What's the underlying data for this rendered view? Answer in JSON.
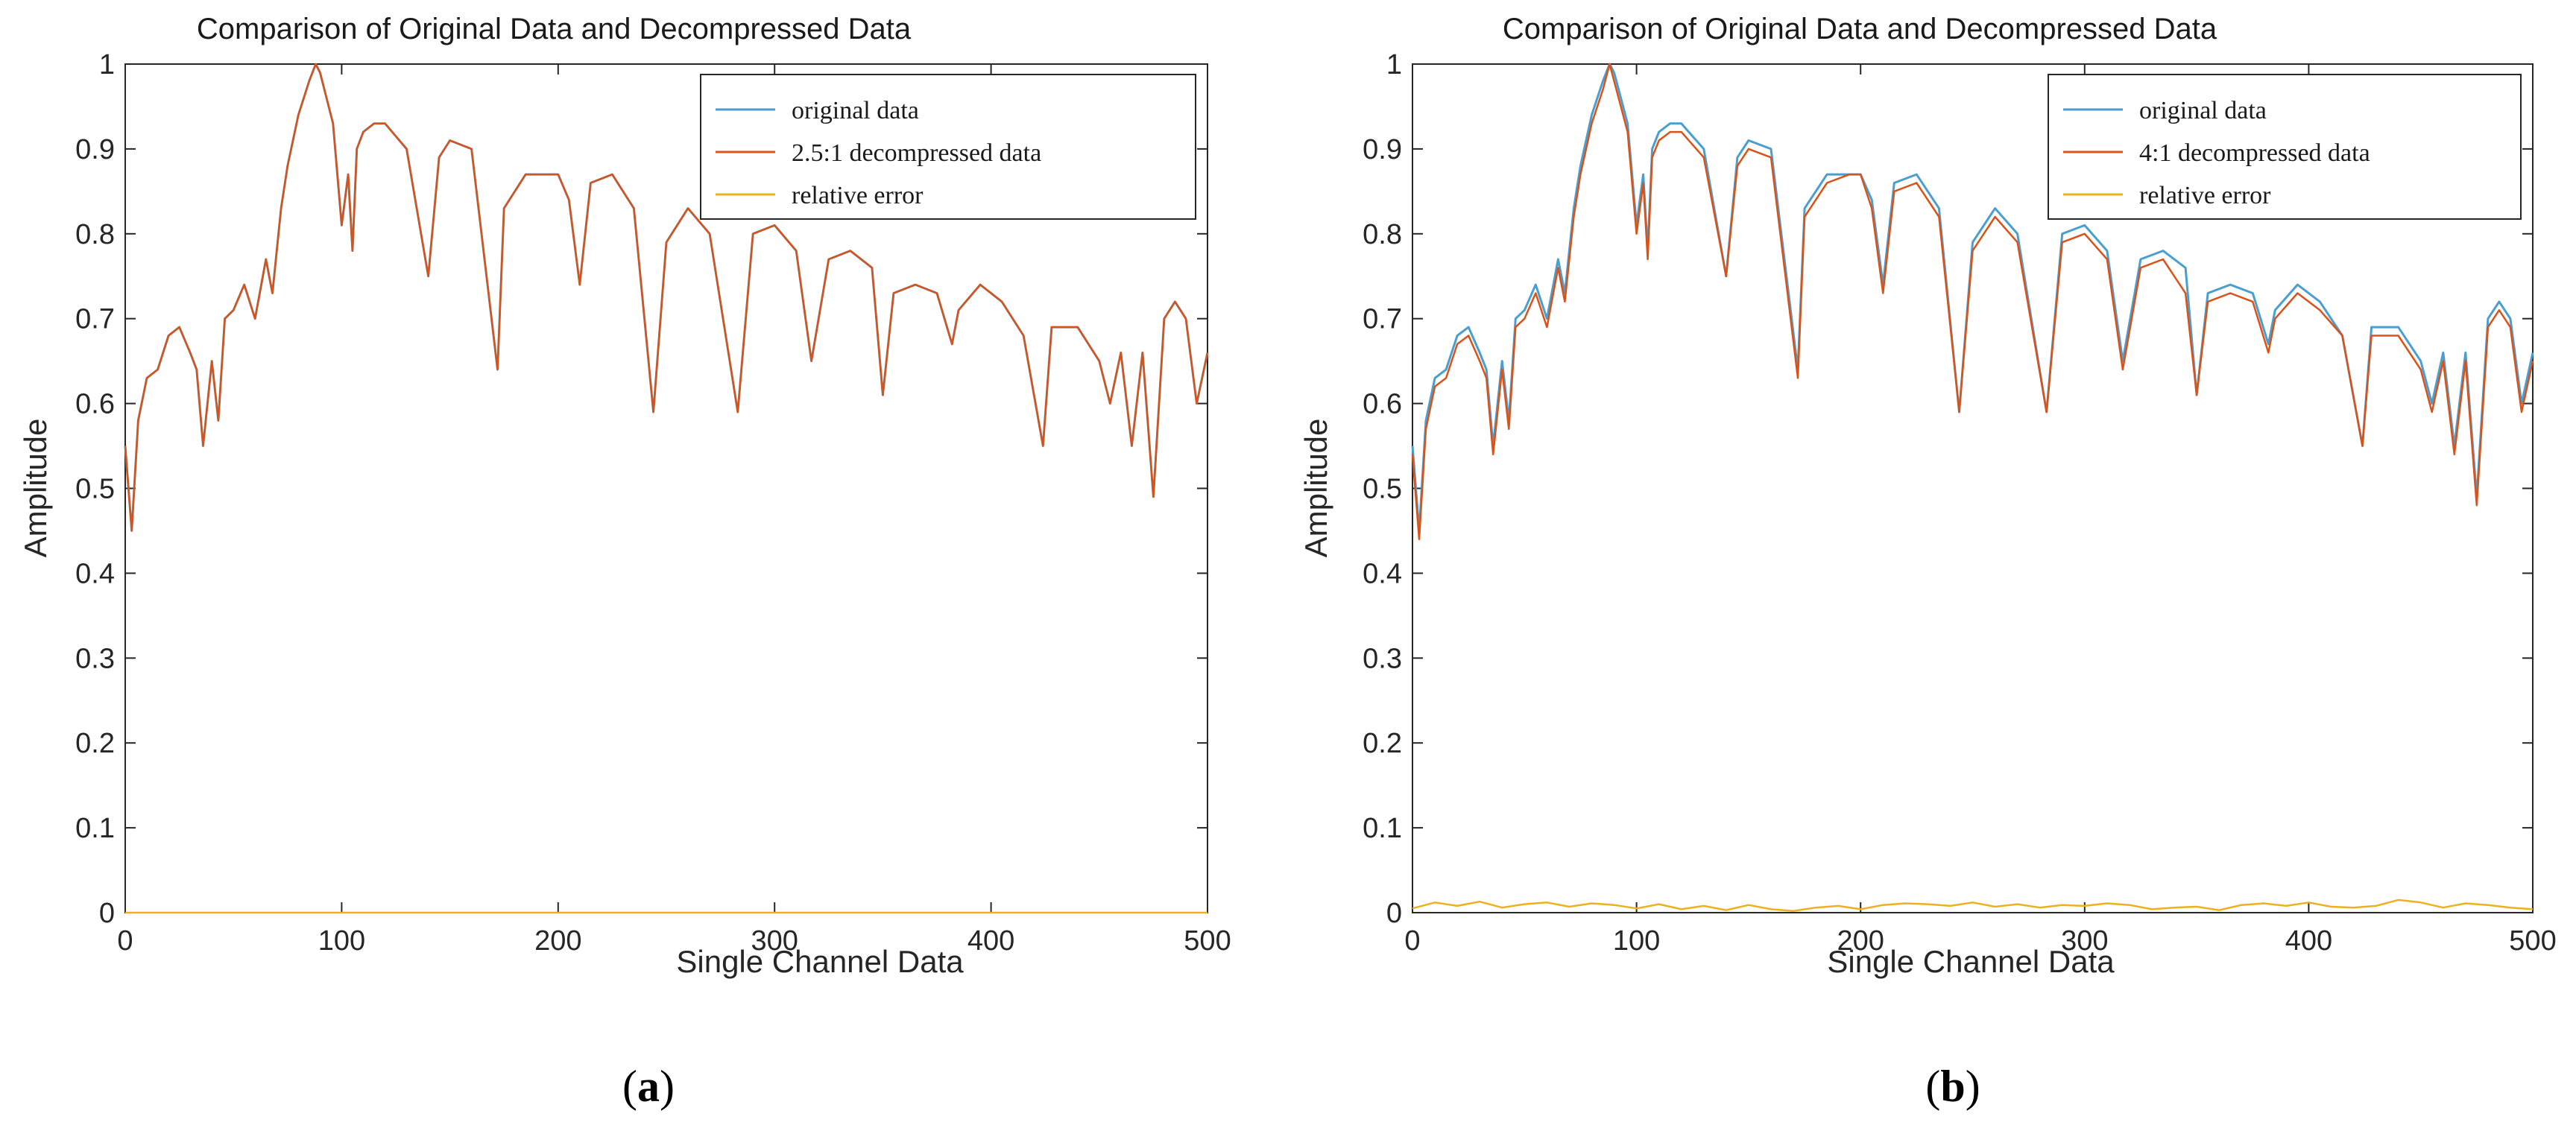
{
  "colors": {
    "original": "#4a9ed0",
    "decompressed": "#d95319",
    "error": "#edb120",
    "axis": "#262626"
  },
  "chart_data": [
    {
      "type": "line",
      "panel": "a",
      "caption": "a",
      "title": "Comparison of Original Data and Decompressed Data",
      "xlabel": "Single Channel Data",
      "ylabel": "Amplitude",
      "xlim": [
        0,
        500
      ],
      "ylim": [
        0,
        1
      ],
      "xticks": [
        "0",
        "100",
        "200",
        "300",
        "400",
        "500"
      ],
      "yticks": [
        "0",
        "0.1",
        "0.2",
        "0.3",
        "0.4",
        "0.5",
        "0.6",
        "0.7",
        "0.8",
        "0.9",
        "1"
      ],
      "grid": false,
      "legend_position": "top-right",
      "series": [
        {
          "name": "original data",
          "color_key": "original",
          "x": [
            0,
            3,
            6,
            10,
            15,
            20,
            25,
            30,
            33,
            36,
            40,
            43,
            46,
            50,
            55,
            60,
            65,
            68,
            72,
            75,
            80,
            85,
            88,
            90,
            93,
            96,
            100,
            103,
            105,
            107,
            110,
            115,
            120,
            130,
            140,
            145,
            150,
            160,
            172,
            175,
            185,
            195,
            200,
            205,
            210,
            215,
            225,
            235,
            244,
            250,
            260,
            270,
            283,
            290,
            300,
            310,
            317,
            325,
            335,
            345,
            350,
            355,
            365,
            375,
            382,
            385,
            395,
            405,
            415,
            424,
            428,
            440,
            450,
            455,
            460,
            465,
            470,
            475,
            480,
            485,
            490,
            495,
            500
          ],
          "y": [
            0.55,
            0.45,
            0.58,
            0.63,
            0.64,
            0.68,
            0.69,
            0.66,
            0.64,
            0.55,
            0.65,
            0.58,
            0.7,
            0.71,
            0.74,
            0.7,
            0.77,
            0.73,
            0.83,
            0.88,
            0.94,
            0.98,
            1.0,
            0.99,
            0.96,
            0.93,
            0.81,
            0.87,
            0.78,
            0.9,
            0.92,
            0.93,
            0.93,
            0.9,
            0.75,
            0.89,
            0.91,
            0.9,
            0.64,
            0.83,
            0.87,
            0.87,
            0.87,
            0.84,
            0.74,
            0.86,
            0.87,
            0.83,
            0.59,
            0.79,
            0.83,
            0.8,
            0.59,
            0.8,
            0.81,
            0.78,
            0.65,
            0.77,
            0.78,
            0.76,
            0.61,
            0.73,
            0.74,
            0.73,
            0.67,
            0.71,
            0.74,
            0.72,
            0.68,
            0.55,
            0.69,
            0.69,
            0.65,
            0.6,
            0.66,
            0.55,
            0.66,
            0.49,
            0.7,
            0.72,
            0.7,
            0.6,
            0.66
          ]
        },
        {
          "name": "2.5:1 decompressed data",
          "color_key": "decompressed",
          "x": [
            0,
            3,
            6,
            10,
            15,
            20,
            25,
            30,
            33,
            36,
            40,
            43,
            46,
            50,
            55,
            60,
            65,
            68,
            72,
            75,
            80,
            85,
            88,
            90,
            93,
            96,
            100,
            103,
            105,
            107,
            110,
            115,
            120,
            130,
            140,
            145,
            150,
            160,
            172,
            175,
            185,
            195,
            200,
            205,
            210,
            215,
            225,
            235,
            244,
            250,
            260,
            270,
            283,
            290,
            300,
            310,
            317,
            325,
            335,
            345,
            350,
            355,
            365,
            375,
            382,
            385,
            395,
            405,
            415,
            424,
            428,
            440,
            450,
            455,
            460,
            465,
            470,
            475,
            480,
            485,
            490,
            495,
            500
          ],
          "y": [
            0.55,
            0.45,
            0.58,
            0.63,
            0.64,
            0.68,
            0.69,
            0.66,
            0.64,
            0.55,
            0.65,
            0.58,
            0.7,
            0.71,
            0.74,
            0.7,
            0.77,
            0.73,
            0.83,
            0.88,
            0.94,
            0.98,
            1.0,
            0.99,
            0.96,
            0.93,
            0.81,
            0.87,
            0.78,
            0.9,
            0.92,
            0.93,
            0.93,
            0.9,
            0.75,
            0.89,
            0.91,
            0.9,
            0.64,
            0.83,
            0.87,
            0.87,
            0.87,
            0.84,
            0.74,
            0.86,
            0.87,
            0.83,
            0.59,
            0.79,
            0.83,
            0.8,
            0.59,
            0.8,
            0.81,
            0.78,
            0.65,
            0.77,
            0.78,
            0.76,
            0.61,
            0.73,
            0.74,
            0.73,
            0.67,
            0.71,
            0.74,
            0.72,
            0.68,
            0.55,
            0.69,
            0.69,
            0.65,
            0.6,
            0.66,
            0.55,
            0.66,
            0.49,
            0.7,
            0.72,
            0.7,
            0.6,
            0.66
          ]
        },
        {
          "name": "relative error",
          "color_key": "error",
          "x": [
            0,
            100,
            200,
            300,
            400,
            500
          ],
          "y": [
            0,
            0,
            0,
            0,
            0,
            0
          ]
        }
      ]
    },
    {
      "type": "line",
      "panel": "b",
      "caption": "b",
      "title": "Comparison of Original Data and Decompressed Data",
      "xlabel": "Single Channel Data",
      "ylabel": "Amplitude",
      "xlim": [
        0,
        500
      ],
      "ylim": [
        0,
        1
      ],
      "xticks": [
        "0",
        "100",
        "200",
        "300",
        "400",
        "500"
      ],
      "yticks": [
        "0",
        "0.1",
        "0.2",
        "0.3",
        "0.4",
        "0.5",
        "0.6",
        "0.7",
        "0.8",
        "0.9",
        "1"
      ],
      "grid": false,
      "legend_position": "top-right",
      "series": [
        {
          "name": "original data",
          "color_key": "original",
          "x": [
            0,
            3,
            6,
            10,
            15,
            20,
            25,
            30,
            33,
            36,
            40,
            43,
            46,
            50,
            55,
            60,
            65,
            68,
            72,
            75,
            80,
            85,
            88,
            90,
            93,
            96,
            100,
            103,
            105,
            107,
            110,
            115,
            120,
            130,
            140,
            145,
            150,
            160,
            172,
            175,
            185,
            195,
            200,
            205,
            210,
            215,
            225,
            235,
            244,
            250,
            260,
            270,
            283,
            290,
            300,
            310,
            317,
            325,
            335,
            345,
            350,
            355,
            365,
            375,
            382,
            385,
            395,
            405,
            415,
            424,
            428,
            440,
            450,
            455,
            460,
            465,
            470,
            475,
            480,
            485,
            490,
            495,
            500
          ],
          "y": [
            0.55,
            0.45,
            0.58,
            0.63,
            0.64,
            0.68,
            0.69,
            0.66,
            0.64,
            0.55,
            0.65,
            0.58,
            0.7,
            0.71,
            0.74,
            0.7,
            0.77,
            0.73,
            0.83,
            0.88,
            0.94,
            0.98,
            1.0,
            0.99,
            0.96,
            0.93,
            0.81,
            0.87,
            0.78,
            0.9,
            0.92,
            0.93,
            0.93,
            0.9,
            0.75,
            0.89,
            0.91,
            0.9,
            0.64,
            0.83,
            0.87,
            0.87,
            0.87,
            0.84,
            0.74,
            0.86,
            0.87,
            0.83,
            0.59,
            0.79,
            0.83,
            0.8,
            0.59,
            0.8,
            0.81,
            0.78,
            0.65,
            0.77,
            0.78,
            0.76,
            0.61,
            0.73,
            0.74,
            0.73,
            0.67,
            0.71,
            0.74,
            0.72,
            0.68,
            0.55,
            0.69,
            0.69,
            0.65,
            0.6,
            0.66,
            0.55,
            0.66,
            0.49,
            0.7,
            0.72,
            0.7,
            0.6,
            0.66
          ]
        },
        {
          "name": "4:1 decompressed data",
          "color_key": "decompressed",
          "x": [
            0,
            3,
            6,
            10,
            15,
            20,
            25,
            30,
            33,
            36,
            40,
            43,
            46,
            50,
            55,
            60,
            65,
            68,
            72,
            75,
            80,
            85,
            88,
            90,
            93,
            96,
            100,
            103,
            105,
            107,
            110,
            115,
            120,
            130,
            140,
            145,
            150,
            160,
            172,
            175,
            185,
            195,
            200,
            205,
            210,
            215,
            225,
            235,
            244,
            250,
            260,
            270,
            283,
            290,
            300,
            310,
            317,
            325,
            335,
            345,
            350,
            355,
            365,
            375,
            382,
            385,
            395,
            405,
            415,
            424,
            428,
            440,
            450,
            455,
            460,
            465,
            470,
            475,
            480,
            485,
            490,
            495,
            500
          ],
          "y": [
            0.54,
            0.44,
            0.57,
            0.62,
            0.63,
            0.67,
            0.68,
            0.65,
            0.63,
            0.54,
            0.64,
            0.57,
            0.69,
            0.7,
            0.73,
            0.69,
            0.76,
            0.72,
            0.82,
            0.87,
            0.93,
            0.97,
            1.0,
            0.98,
            0.95,
            0.92,
            0.8,
            0.86,
            0.77,
            0.89,
            0.91,
            0.92,
            0.92,
            0.89,
            0.75,
            0.88,
            0.9,
            0.89,
            0.63,
            0.82,
            0.86,
            0.87,
            0.87,
            0.83,
            0.73,
            0.85,
            0.86,
            0.82,
            0.59,
            0.78,
            0.82,
            0.79,
            0.59,
            0.79,
            0.8,
            0.77,
            0.64,
            0.76,
            0.77,
            0.73,
            0.61,
            0.72,
            0.73,
            0.72,
            0.66,
            0.7,
            0.73,
            0.71,
            0.68,
            0.55,
            0.68,
            0.68,
            0.64,
            0.59,
            0.65,
            0.54,
            0.65,
            0.48,
            0.69,
            0.71,
            0.69,
            0.59,
            0.65
          ]
        },
        {
          "name": "relative error",
          "color_key": "error",
          "x": [
            0,
            10,
            20,
            30,
            40,
            50,
            60,
            70,
            80,
            90,
            100,
            110,
            120,
            130,
            140,
            150,
            160,
            170,
            180,
            190,
            200,
            210,
            220,
            230,
            240,
            250,
            260,
            270,
            280,
            290,
            300,
            310,
            320,
            330,
            340,
            350,
            360,
            370,
            380,
            390,
            400,
            410,
            420,
            430,
            440,
            450,
            460,
            470,
            480,
            490,
            500
          ],
          "y": [
            0.005,
            0.012,
            0.008,
            0.013,
            0.006,
            0.01,
            0.012,
            0.007,
            0.011,
            0.009,
            0.005,
            0.01,
            0.004,
            0.008,
            0.003,
            0.009,
            0.004,
            0.002,
            0.006,
            0.008,
            0.004,
            0.009,
            0.011,
            0.01,
            0.008,
            0.012,
            0.007,
            0.01,
            0.006,
            0.009,
            0.008,
            0.011,
            0.009,
            0.004,
            0.006,
            0.007,
            0.003,
            0.009,
            0.011,
            0.008,
            0.012,
            0.007,
            0.006,
            0.008,
            0.015,
            0.012,
            0.006,
            0.011,
            0.009,
            0.006,
            0.004
          ]
        }
      ]
    }
  ]
}
